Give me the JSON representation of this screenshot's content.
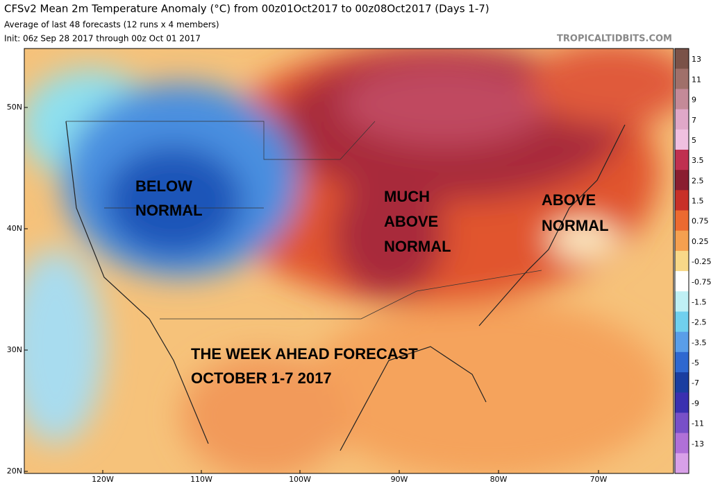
{
  "header": {
    "title": "CFSv2 Mean 2m Temperature Anomaly (°C) from 00z01Oct2017 to 00z08Oct2017 (Days 1-7)",
    "subtitle": "Average of last 48 forecasts (12 runs x 4 members)",
    "init": "Init: 06z Sep 28 2017 through 00z Oct 01 2017",
    "watermark": "TROPICALTIDBITS.COM"
  },
  "map": {
    "lat_labels": [
      "50N",
      "40N",
      "30N",
      "20N"
    ],
    "lon_labels": [
      "120W",
      "110W",
      "100W",
      "90W",
      "80W",
      "70W"
    ],
    "annotations": [
      {
        "lines": [
          "BELOW",
          "NORMAL"
        ]
      },
      {
        "lines": [
          "MUCH",
          "ABOVE",
          "NORMAL"
        ]
      },
      {
        "lines": [
          "ABOVE",
          "NORMAL"
        ]
      },
      {
        "lines": [
          "THE WEEK AHEAD FORECAST",
          "OCTOBER 1-7 2017"
        ]
      }
    ]
  },
  "colorbar": {
    "labels": [
      "13",
      "11",
      "9",
      "7",
      "5",
      "3.5",
      "2.5",
      "1.5",
      "0.75",
      "0.25",
      "-0.25",
      "-0.75",
      "-1.5",
      "-2.5",
      "-3.5",
      "-5",
      "-7",
      "-9",
      "-11",
      "-13"
    ]
  }
}
